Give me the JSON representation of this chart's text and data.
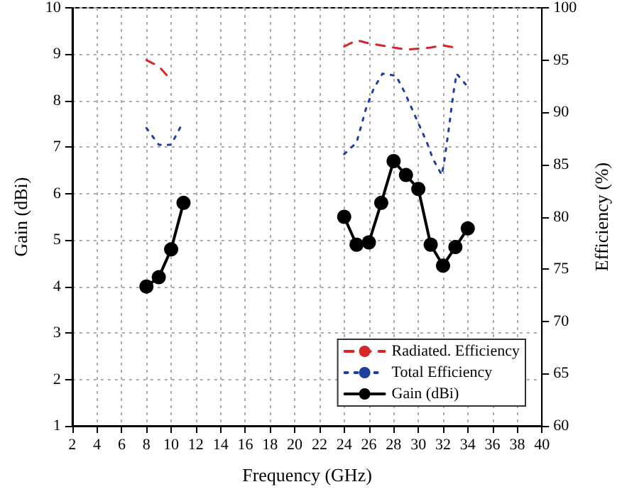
{
  "chart_data": {
    "type": "line",
    "xlabel": "Frequency (GHz)",
    "ylabel": "Gain (dBi)",
    "y2label": "Efficiency (%)",
    "xlim": [
      2,
      40
    ],
    "xticks": [
      2,
      4,
      6,
      8,
      10,
      12,
      14,
      16,
      18,
      20,
      22,
      24,
      26,
      28,
      30,
      32,
      34,
      36,
      38,
      40
    ],
    "ylim": [
      1,
      10
    ],
    "yticks": [
      1,
      2,
      3,
      4,
      5,
      6,
      7,
      8,
      9,
      10
    ],
    "y2lim": [
      60,
      100
    ],
    "y2ticks": [
      60,
      65,
      70,
      75,
      80,
      85,
      90,
      95,
      100
    ],
    "grid": true,
    "legend": "bottom right",
    "series": [
      {
        "name": "Radiated. Efficiency",
        "color": "#d62728",
        "axis": "y2",
        "line_style": "dashed",
        "marker": "none",
        "x": [
          8,
          9,
          10,
          17,
          24,
          25,
          26,
          27,
          28,
          29,
          30,
          31,
          32,
          33
        ],
        "values": [
          95.0,
          94.4,
          93.1,
          null,
          96.3,
          96.9,
          96.6,
          96.4,
          96.2,
          96.0,
          96.1,
          96.2,
          96.4,
          96.2
        ]
      },
      {
        "name": "Total Efficiency",
        "color": "#1f3fa0",
        "axis": "y2",
        "line_style": "dotted",
        "marker": "none",
        "x": [
          8,
          9,
          10,
          10.8,
          17,
          24,
          25,
          25.4,
          25.8,
          26.4,
          27.1,
          28.2,
          28.9,
          29.5,
          30.1,
          30.7,
          31.2,
          31.9,
          32.1,
          32.5,
          32.7,
          32.9,
          33.1,
          34.1
        ],
        "values": [
          88.5,
          86.9,
          86.9,
          88.7,
          null,
          86.0,
          87.1,
          88.8,
          90.5,
          92.3,
          93.7,
          93.5,
          91.9,
          90.3,
          88.7,
          87.1,
          85.5,
          84.0,
          85.3,
          88.7,
          90.6,
          92.3,
          93.7,
          92.3
        ]
      },
      {
        "name": "Gain (dBi)",
        "color": "#000000",
        "line_style": "solid",
        "marker": "circle",
        "x": [
          8,
          9,
          10,
          11,
          17,
          24,
          25,
          26,
          27,
          28,
          29,
          30,
          31,
          32,
          33,
          34
        ],
        "values": [
          4.0,
          4.2,
          4.8,
          5.8,
          null,
          5.5,
          4.9,
          4.95,
          5.8,
          6.7,
          6.4,
          6.1,
          4.9,
          4.45,
          4.85,
          5.25
        ]
      }
    ]
  }
}
